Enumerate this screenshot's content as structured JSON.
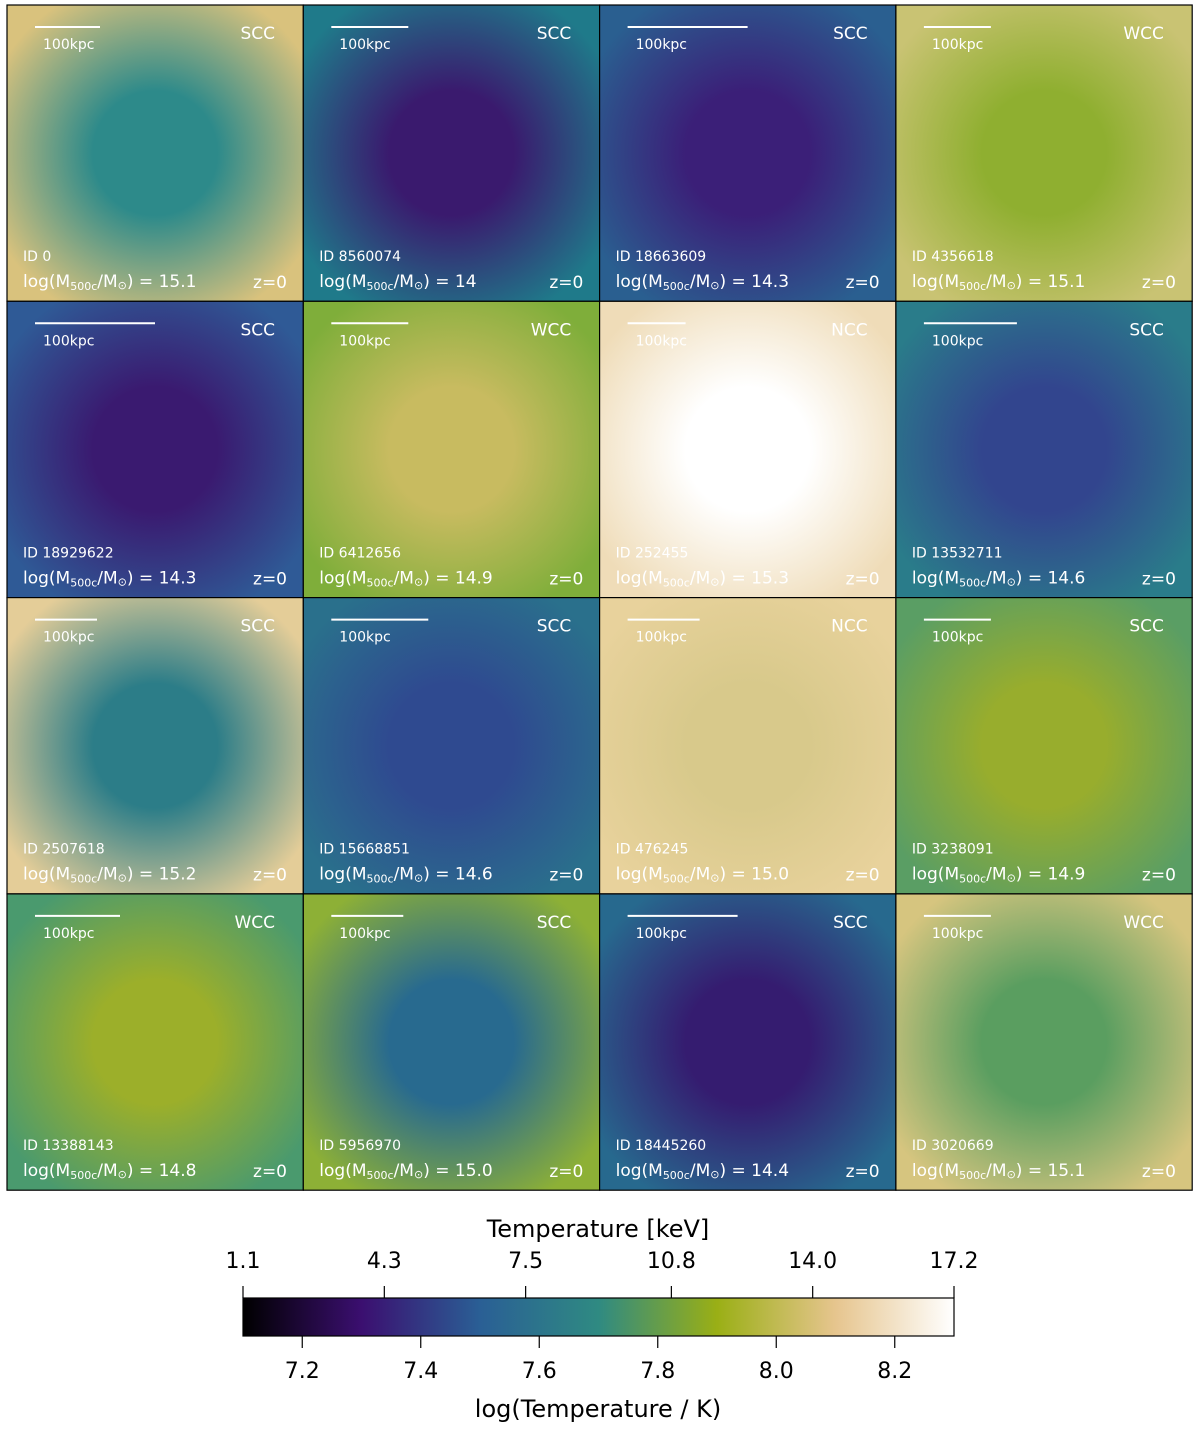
{
  "scale_label": "100kpc",
  "redshift": "z=0",
  "mass_label": {
    "prefix": "log(M",
    "sub": "500c",
    "mid": "/M",
    "sun": "⊙",
    "eq": ") = "
  },
  "panels": [
    {
      "id": "ID 0",
      "mass": "15.1",
      "class": "SCC",
      "colors": [
        "#d9c27d",
        "#2d8a8a"
      ]
    },
    {
      "id": "ID 8560074",
      "mass": "14",
      "class": "SCC",
      "colors": [
        "#1f7a8a",
        "#3a1a6e"
      ]
    },
    {
      "id": "ID 18663609",
      "mass": "14.3",
      "class": "SCC",
      "colors": [
        "#2a5f90",
        "#3b1f78"
      ]
    },
    {
      "id": "ID 4356618",
      "mass": "15.1",
      "class": "WCC",
      "colors": [
        "#c9c373",
        "#8faf30"
      ]
    },
    {
      "id": "ID 18929622",
      "mass": "14.3",
      "class": "SCC",
      "colors": [
        "#2f5a96",
        "#3a1a70"
      ]
    },
    {
      "id": "ID 6412656",
      "mass": "14.9",
      "class": "WCC",
      "colors": [
        "#7fae3a",
        "#c8bb60"
      ]
    },
    {
      "id": "ID 252455",
      "mass": "15.3",
      "class": "NCC",
      "colors": [
        "#efdcb8",
        "#ffffff"
      ]
    },
    {
      "id": "ID 13532711",
      "mass": "14.6",
      "class": "SCC",
      "colors": [
        "#2a7c8a",
        "#32458e"
      ]
    },
    {
      "id": "ID 2507618",
      "mass": "15.2",
      "class": "SCC",
      "colors": [
        "#e4cd98",
        "#2c7d88"
      ]
    },
    {
      "id": "ID 15668851",
      "mass": "14.6",
      "class": "SCC",
      "colors": [
        "#2a708c",
        "#2f4a90"
      ]
    },
    {
      "id": "ID 476245",
      "mass": "15.0",
      "class": "NCC",
      "colors": [
        "#e8d29c",
        "#d8c98b"
      ]
    },
    {
      "id": "ID 3238091",
      "mass": "14.9",
      "class": "SCC",
      "colors": [
        "#5a9e64",
        "#98ad2d"
      ]
    },
    {
      "id": "ID 13388143",
      "mass": "14.8",
      "class": "WCC",
      "colors": [
        "#4a9a6e",
        "#9caf2a"
      ]
    },
    {
      "id": "ID 5956970",
      "mass": "15.0",
      "class": "SCC",
      "colors": [
        "#8db036",
        "#286a8f"
      ]
    },
    {
      "id": "ID 18445260",
      "mass": "14.4",
      "class": "SCC",
      "colors": [
        "#27698e",
        "#351c70"
      ]
    },
    {
      "id": "ID 3020669",
      "mass": "15.1",
      "class": "WCC",
      "colors": [
        "#d6c57f",
        "#5a9e60"
      ]
    }
  ],
  "colorbar": {
    "top_label": "Temperature [keV]",
    "bottom_label": "log(Temperature / K)",
    "x2lim": [
      1.1,
      17.2
    ],
    "x2ticks": [
      1.1,
      4.3,
      7.5,
      10.8,
      {
        "value": 14,
        "label": "14.0"
      },
      17.2
    ],
    "xlim": [
      7.1,
      8.3
    ],
    "xticks": [
      7.2,
      7.4,
      7.6,
      7.8,
      {
        "value": 8,
        "label": "8.0"
      },
      8.2
    ],
    "colormap": [
      "#000000",
      "#3b0f70",
      "#2a5f95",
      "#2f8a82",
      "#9aaf15",
      "#e6c58e",
      "#ffffff"
    ]
  }
}
